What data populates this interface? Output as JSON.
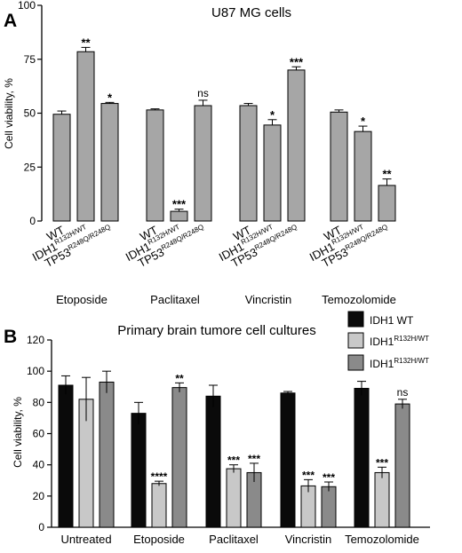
{
  "panels": [
    {
      "letter": "A",
      "chart_data": {
        "type": "bar",
        "title": "U87 MG cells",
        "ylabel": "Cell viability, %",
        "xlabel": "",
        "ylim": [
          0,
          100
        ],
        "yticks": [
          0,
          25,
          50,
          75,
          100
        ],
        "bar_labels": [
          {
            "base": "WT",
            "sup": ""
          },
          {
            "base": "IDH1",
            "sup": "R132H/WT"
          },
          {
            "base": "TP53",
            "sup": "R248Q/R248Q"
          }
        ],
        "groups": [
          {
            "name": "Etoposide",
            "values": [
              49.5,
              78.5,
              54.5
            ],
            "errors": [
              1.5,
              2,
              0.5
            ],
            "sig": [
              "",
              "**",
              "*"
            ]
          },
          {
            "name": "Paclitaxel",
            "values": [
              51.5,
              4.5,
              53.5
            ],
            "errors": [
              0.5,
              1,
              2.5
            ],
            "sig": [
              "",
              "***",
              "ns"
            ]
          },
          {
            "name": "Vincristin",
            "values": [
              53.5,
              44.5,
              70
            ],
            "errors": [
              1,
              2.5,
              1.5
            ],
            "sig": [
              "",
              "*",
              "***"
            ]
          },
          {
            "name": "Temozolomide",
            "values": [
              50.5,
              41.5,
              16.5
            ],
            "errors": [
              1,
              2.5,
              3
            ],
            "sig": [
              "",
              "*",
              "**"
            ]
          }
        ],
        "grid": false,
        "bar_color": "#a6a6a6"
      }
    },
    {
      "letter": "B",
      "chart_data": {
        "type": "bar",
        "title": "Primary brain tumore cell cultures",
        "ylabel": "Cell viability, %",
        "xlabel": "",
        "ylim": [
          0,
          120
        ],
        "yticks": [
          0,
          20,
          40,
          60,
          80,
          100,
          120
        ],
        "categories": [
          "Untreated",
          "Etoposide",
          "Paclitaxel",
          "Vincristin",
          "Temozolomide"
        ],
        "series": [
          {
            "name": "IDH1 WT",
            "sup": "",
            "color": "#0a0a0a",
            "values": [
              91,
              73,
              84,
              86,
              89
            ],
            "errors": [
              6,
              7,
              7,
              1,
              4.5
            ],
            "sig": [
              "",
              "",
              "",
              "",
              ""
            ]
          },
          {
            "name": "IDH1",
            "sup": "R132H/WT",
            "color": "#c8c8c8",
            "values": [
              82,
              28,
              37.5,
              26.5,
              35
            ],
            "errors": [
              14,
              1.5,
              2.5,
              4,
              3.5
            ],
            "sig": [
              "",
              "****",
              "***",
              "***",
              "***"
            ]
          },
          {
            "name": "IDH1",
            "sup": "R132H/WT",
            "color": "#8a8a8a",
            "values": [
              93,
              89.5,
              35,
              26,
              79
            ],
            "errors": [
              7,
              3,
              6,
              3,
              3
            ],
            "sig": [
              "",
              "**",
              "***",
              "***",
              "ns"
            ]
          }
        ],
        "legend": "top-right",
        "grid": false
      }
    }
  ]
}
